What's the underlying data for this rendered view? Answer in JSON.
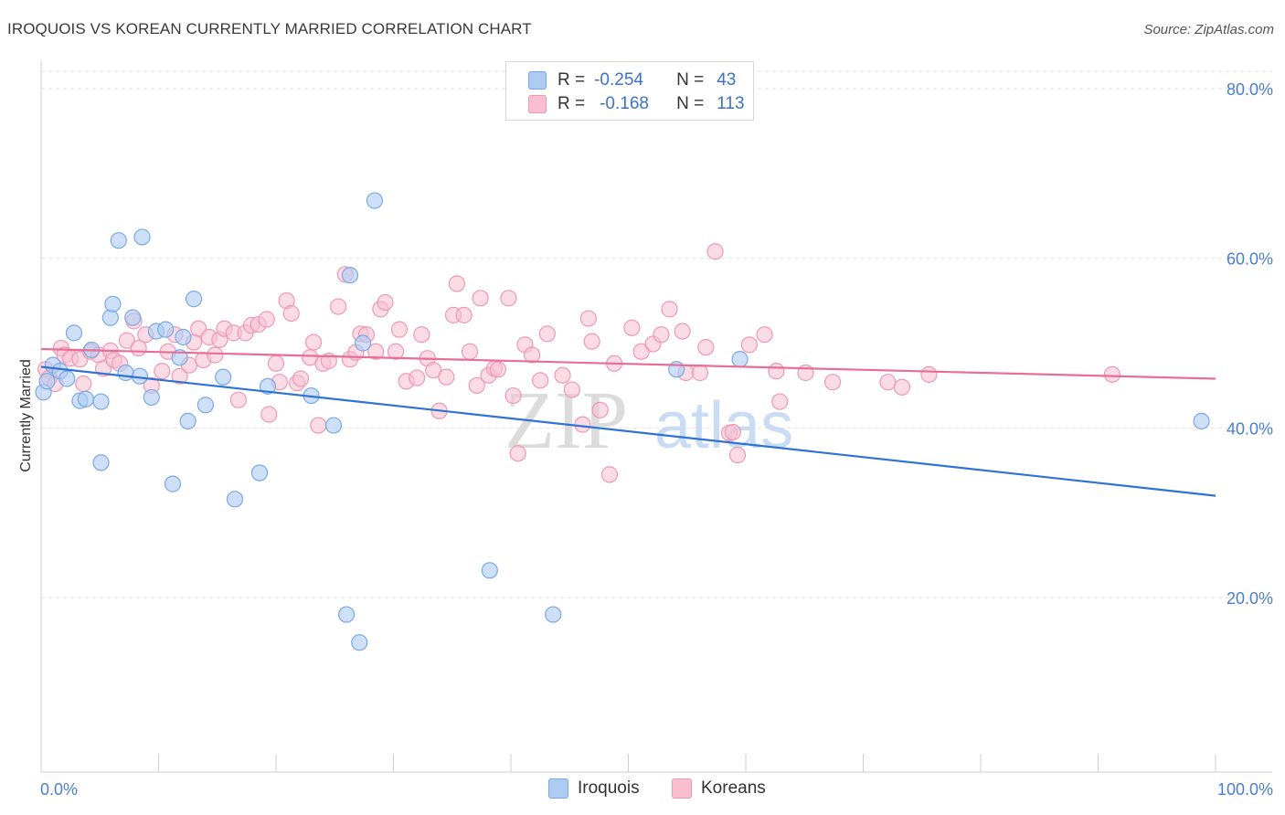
{
  "header": {
    "title": "IROQUOIS VS KOREAN CURRENTLY MARRIED CORRELATION CHART",
    "source": "Source: ZipAtlas.com"
  },
  "legend": {
    "rows": [
      {
        "r_label": "R =",
        "r_value": "-0.254",
        "n_label": "N =",
        "n_value": "43"
      },
      {
        "r_label": "R =",
        "r_value": "-0.168",
        "n_label": "N =",
        "n_value": "113"
      }
    ]
  },
  "bottom_legend": {
    "iroquois": "Iroquois",
    "koreans": "Koreans"
  },
  "colors": {
    "iroquois_fill": "#aecbf2",
    "iroquois_stroke": "#7aa8e6",
    "iroquois_line": "#2f73d4",
    "koreans_fill": "#f8bfd0",
    "koreans_stroke": "#ee98b4",
    "koreans_line": "#e86d97",
    "tick_text": "#4a7fd0",
    "watermark": "#dcdcdc",
    "watermark_atlas": "#c9dcf3"
  },
  "watermark": {
    "zip": "ZIP",
    "atlas": "atlas"
  },
  "chart_data": {
    "type": "scatter",
    "title": "IROQUOIS VS KOREAN CURRENTLY MARRIED CORRELATION CHART",
    "xlabel": "",
    "ylabel": "Currently Married",
    "xlim": [
      0,
      100
    ],
    "ylim": [
      0,
      85
    ],
    "x_tick_labels": [
      "0.0%",
      "100.0%"
    ],
    "y_ticks": [
      20,
      40,
      60,
      80
    ],
    "y_tick_labels": [
      "20.0%",
      "40.0%",
      "60.0%",
      "80.0%"
    ],
    "grid": true,
    "legend_position": "top-center",
    "series": [
      {
        "name": "Iroquois",
        "r": -0.254,
        "n": 43,
        "trend": {
          "x0": 0,
          "y0": 47.2,
          "x1": 100,
          "y1": 32.0
        },
        "points": [
          [
            0.2,
            44.2
          ],
          [
            0.5,
            45.5
          ],
          [
            1.0,
            47.4
          ],
          [
            1.6,
            46.7
          ],
          [
            2.2,
            45.8
          ],
          [
            2.8,
            51.2
          ],
          [
            3.3,
            43.2
          ],
          [
            3.8,
            43.4
          ],
          [
            4.3,
            49.2
          ],
          [
            5.1,
            43.1
          ],
          [
            5.1,
            35.9
          ],
          [
            5.9,
            53.0
          ],
          [
            6.1,
            54.6
          ],
          [
            6.6,
            62.1
          ],
          [
            7.2,
            46.5
          ],
          [
            7.8,
            53.0
          ],
          [
            8.4,
            46.1
          ],
          [
            8.6,
            62.5
          ],
          [
            9.4,
            43.6
          ],
          [
            9.8,
            51.4
          ],
          [
            10.6,
            51.6
          ],
          [
            11.2,
            33.4
          ],
          [
            11.8,
            48.3
          ],
          [
            12.1,
            50.7
          ],
          [
            12.5,
            40.8
          ],
          [
            13.0,
            55.2
          ],
          [
            14.0,
            42.7
          ],
          [
            15.5,
            46.0
          ],
          [
            16.5,
            31.6
          ],
          [
            18.6,
            34.7
          ],
          [
            19.3,
            44.9
          ],
          [
            23.0,
            43.8
          ],
          [
            24.9,
            40.3
          ],
          [
            26.0,
            18.0
          ],
          [
            26.3,
            58.0
          ],
          [
            27.1,
            14.7
          ],
          [
            27.4,
            50.0
          ],
          [
            28.4,
            66.8
          ],
          [
            38.2,
            23.2
          ],
          [
            43.6,
            18.0
          ],
          [
            54.1,
            46.9
          ],
          [
            59.5,
            48.1
          ],
          [
            98.8,
            40.8
          ]
        ]
      },
      {
        "name": "Koreans",
        "r": -0.168,
        "n": 113,
        "trend": {
          "x0": 0,
          "y0": 49.3,
          "x1": 100,
          "y1": 45.8
        },
        "points": [
          [
            0.4,
            46.9
          ],
          [
            0.7,
            45.9
          ],
          [
            1.2,
            45.2
          ],
          [
            1.7,
            49.4
          ],
          [
            2.0,
            48.6
          ],
          [
            2.5,
            48.2
          ],
          [
            3.3,
            48.1
          ],
          [
            3.6,
            45.2
          ],
          [
            4.2,
            49.0
          ],
          [
            4.9,
            48.6
          ],
          [
            5.3,
            47.0
          ],
          [
            5.9,
            49.1
          ],
          [
            6.2,
            48.0
          ],
          [
            6.7,
            47.6
          ],
          [
            7.3,
            50.3
          ],
          [
            7.9,
            52.6
          ],
          [
            8.3,
            49.4
          ],
          [
            8.9,
            51.0
          ],
          [
            9.4,
            45.0
          ],
          [
            10.3,
            46.7
          ],
          [
            10.8,
            49.0
          ],
          [
            11.4,
            51.0
          ],
          [
            11.8,
            46.1
          ],
          [
            12.6,
            47.4
          ],
          [
            13.0,
            50.1
          ],
          [
            13.4,
            51.7
          ],
          [
            13.8,
            48.0
          ],
          [
            14.3,
            50.7
          ],
          [
            14.8,
            48.6
          ],
          [
            15.2,
            50.4
          ],
          [
            15.6,
            51.7
          ],
          [
            16.4,
            51.2
          ],
          [
            16.8,
            43.3
          ],
          [
            17.4,
            51.2
          ],
          [
            17.9,
            52.1
          ],
          [
            18.5,
            52.2
          ],
          [
            19.2,
            52.8
          ],
          [
            19.4,
            41.6
          ],
          [
            20.0,
            47.6
          ],
          [
            20.3,
            45.4
          ],
          [
            20.9,
            55.0
          ],
          [
            21.3,
            53.5
          ],
          [
            21.8,
            45.3
          ],
          [
            22.1,
            45.8
          ],
          [
            22.9,
            48.3
          ],
          [
            23.2,
            50.1
          ],
          [
            23.6,
            40.3
          ],
          [
            24.0,
            47.6
          ],
          [
            24.5,
            47.9
          ],
          [
            25.3,
            54.3
          ],
          [
            25.9,
            58.1
          ],
          [
            26.3,
            48.1
          ],
          [
            26.8,
            48.9
          ],
          [
            27.2,
            51.1
          ],
          [
            27.7,
            51.0
          ],
          [
            28.5,
            49.0
          ],
          [
            28.9,
            54.0
          ],
          [
            29.3,
            54.8
          ],
          [
            30.2,
            49.0
          ],
          [
            30.5,
            51.6
          ],
          [
            31.1,
            45.5
          ],
          [
            32.0,
            45.9
          ],
          [
            32.4,
            51.0
          ],
          [
            32.9,
            48.2
          ],
          [
            33.4,
            46.8
          ],
          [
            33.9,
            42.0
          ],
          [
            34.5,
            46.0
          ],
          [
            35.1,
            53.3
          ],
          [
            35.4,
            57.0
          ],
          [
            36.0,
            53.3
          ],
          [
            36.5,
            49.0
          ],
          [
            37.1,
            45.0
          ],
          [
            37.4,
            55.3
          ],
          [
            38.1,
            46.2
          ],
          [
            38.6,
            47.0
          ],
          [
            38.9,
            46.9
          ],
          [
            39.8,
            55.3
          ],
          [
            40.2,
            43.8
          ],
          [
            40.6,
            37.0
          ],
          [
            41.2,
            49.8
          ],
          [
            41.8,
            48.6
          ],
          [
            42.5,
            45.6
          ],
          [
            43.1,
            51.1
          ],
          [
            44.4,
            46.2
          ],
          [
            45.2,
            44.5
          ],
          [
            46.1,
            40.4
          ],
          [
            46.6,
            52.9
          ],
          [
            46.9,
            50.2
          ],
          [
            47.6,
            42.1
          ],
          [
            48.4,
            34.5
          ],
          [
            48.8,
            47.6
          ],
          [
            50.3,
            51.8
          ],
          [
            51.1,
            49.0
          ],
          [
            52.1,
            49.9
          ],
          [
            52.8,
            51.0
          ],
          [
            53.5,
            54.0
          ],
          [
            54.6,
            51.4
          ],
          [
            54.9,
            46.5
          ],
          [
            56.1,
            46.5
          ],
          [
            56.6,
            49.5
          ],
          [
            57.4,
            60.8
          ],
          [
            58.6,
            39.4
          ],
          [
            58.9,
            39.5
          ],
          [
            59.3,
            36.8
          ],
          [
            60.3,
            49.8
          ],
          [
            61.6,
            51.0
          ],
          [
            62.6,
            46.7
          ],
          [
            62.9,
            43.1
          ],
          [
            65.1,
            46.5
          ],
          [
            67.4,
            45.4
          ],
          [
            72.1,
            45.4
          ],
          [
            73.3,
            44.8
          ],
          [
            75.6,
            46.3
          ],
          [
            91.2,
            46.3
          ]
        ]
      }
    ]
  }
}
